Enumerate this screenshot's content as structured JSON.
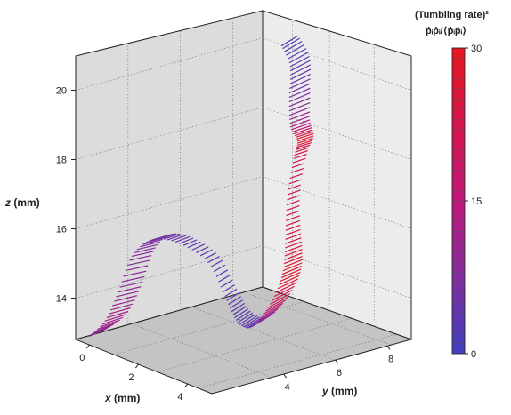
{
  "chart_data": {
    "type": "3d-line-glyph",
    "axes": {
      "x": {
        "label": "x",
        "unit": "(mm)",
        "ticks": [
          0,
          2,
          4
        ],
        "range": [
          -0.5,
          5.0
        ]
      },
      "y": {
        "label": "y",
        "unit": "(mm)",
        "ticks": [
          4,
          6,
          8
        ],
        "range": [
          1.0,
          9.0
        ]
      },
      "z": {
        "label": "z",
        "unit": "(mm)",
        "ticks": [
          14,
          16,
          18,
          20
        ],
        "range": [
          12.7,
          21.0
        ]
      }
    },
    "grid": true,
    "colorbar": {
      "title_line1": "(Tumbling rate)²",
      "title_line2": "ṗᵢṗᵢ/⟨ṗᵢṗᵢ⟩",
      "ticks": [
        0,
        15,
        30
      ],
      "range": [
        0,
        30
      ],
      "low_color": "#4040c0",
      "mid_color": "#c0187a",
      "high_color": "#e8141e",
      "placement": "right"
    },
    "trajectory": {
      "waypoints": [
        {
          "x": 0.0,
          "y": 1.0,
          "z": 12.9,
          "rate": 9
        },
        {
          "x": 1.1,
          "y": 1.2,
          "z": 13.5,
          "rate": 12
        },
        {
          "x": 1.6,
          "y": 1.5,
          "z": 14.4,
          "rate": 9
        },
        {
          "x": 1.5,
          "y": 2.0,
          "z": 15.4,
          "rate": 8
        },
        {
          "x": 1.2,
          "y": 2.8,
          "z": 15.8,
          "rate": 6
        },
        {
          "x": 0.9,
          "y": 3.8,
          "z": 15.6,
          "rate": 4
        },
        {
          "x": 0.8,
          "y": 4.8,
          "z": 15.0,
          "rate": 3
        },
        {
          "x": 1.4,
          "y": 5.2,
          "z": 14.1,
          "rate": 3
        },
        {
          "x": 2.0,
          "y": 5.4,
          "z": 13.5,
          "rate": 3
        },
        {
          "x": 2.2,
          "y": 5.8,
          "z": 13.3,
          "rate": 4
        },
        {
          "x": 1.7,
          "y": 6.5,
          "z": 13.6,
          "rate": 18
        },
        {
          "x": 0.9,
          "y": 7.2,
          "z": 14.1,
          "rate": 28
        },
        {
          "x": 0.5,
          "y": 7.5,
          "z": 14.7,
          "rate": 26
        },
        {
          "x": 0.3,
          "y": 7.6,
          "z": 15.5,
          "rate": 24
        },
        {
          "x": 0.2,
          "y": 7.7,
          "z": 16.5,
          "rate": 22
        },
        {
          "x": 0.2,
          "y": 7.9,
          "z": 17.5,
          "rate": 20
        },
        {
          "x": 0.3,
          "y": 8.0,
          "z": 18.0,
          "rate": 28
        },
        {
          "x": 0.5,
          "y": 7.7,
          "z": 18.5,
          "rate": 12
        },
        {
          "x": 0.7,
          "y": 7.6,
          "z": 19.4,
          "rate": 6
        },
        {
          "x": 0.8,
          "y": 7.6,
          "z": 20.3,
          "rate": 3
        },
        {
          "x": 0.7,
          "y": 7.3,
          "z": 21.0,
          "rate": 2
        }
      ]
    }
  }
}
